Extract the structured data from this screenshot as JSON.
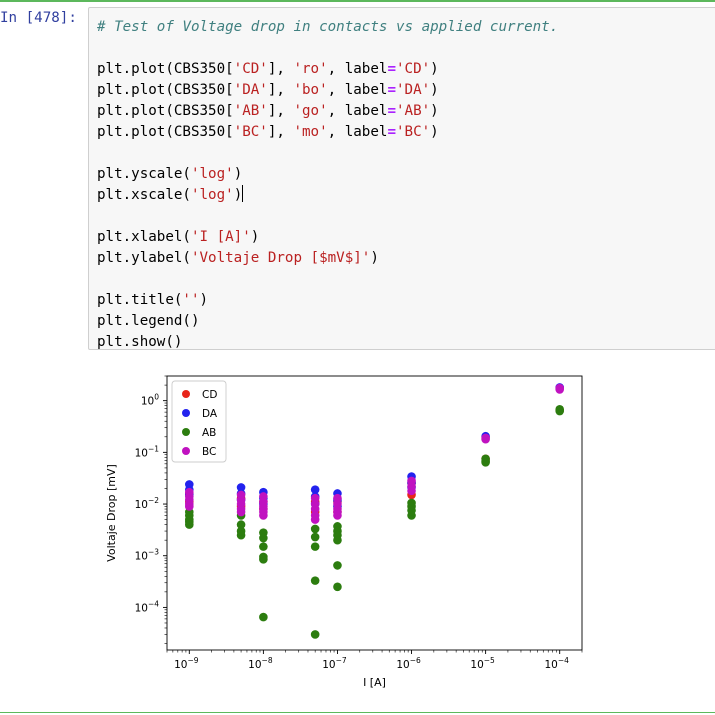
{
  "cell": {
    "prompt": "In [478]:",
    "code_lines": [
      [
        {
          "t": "# Test of Voltage drop in contacts vs applied current.",
          "c": "cmt"
        }
      ],
      [],
      [
        {
          "t": "plt.plot(CBS350[",
          "c": "par"
        },
        {
          "t": "'CD'",
          "c": "str"
        },
        {
          "t": "], ",
          "c": "par"
        },
        {
          "t": "'ro'",
          "c": "str"
        },
        {
          "t": ", label",
          "c": "par"
        },
        {
          "t": "=",
          "c": "kw"
        },
        {
          "t": "'CD'",
          "c": "str"
        },
        {
          "t": ")",
          "c": "par"
        }
      ],
      [
        {
          "t": "plt.plot(CBS350[",
          "c": "par"
        },
        {
          "t": "'DA'",
          "c": "str"
        },
        {
          "t": "], ",
          "c": "par"
        },
        {
          "t": "'bo'",
          "c": "str"
        },
        {
          "t": ", label",
          "c": "par"
        },
        {
          "t": "=",
          "c": "kw"
        },
        {
          "t": "'DA'",
          "c": "str"
        },
        {
          "t": ")",
          "c": "par"
        }
      ],
      [
        {
          "t": "plt.plot(CBS350[",
          "c": "par"
        },
        {
          "t": "'AB'",
          "c": "str"
        },
        {
          "t": "], ",
          "c": "par"
        },
        {
          "t": "'go'",
          "c": "str"
        },
        {
          "t": ", label",
          "c": "par"
        },
        {
          "t": "=",
          "c": "kw"
        },
        {
          "t": "'AB'",
          "c": "str"
        },
        {
          "t": ")",
          "c": "par"
        }
      ],
      [
        {
          "t": "plt.plot(CBS350[",
          "c": "par"
        },
        {
          "t": "'BC'",
          "c": "str"
        },
        {
          "t": "], ",
          "c": "par"
        },
        {
          "t": "'mo'",
          "c": "str"
        },
        {
          "t": ", label",
          "c": "par"
        },
        {
          "t": "=",
          "c": "kw"
        },
        {
          "t": "'BC'",
          "c": "str"
        },
        {
          "t": ")",
          "c": "par"
        }
      ],
      [],
      [
        {
          "t": "plt.yscale(",
          "c": "par"
        },
        {
          "t": "'log'",
          "c": "str"
        },
        {
          "t": ")",
          "c": "par"
        }
      ],
      [
        {
          "t": "plt.xscale(",
          "c": "par"
        },
        {
          "t": "'log'",
          "c": "str"
        },
        {
          "t": ")",
          "c": "par"
        }
      ],
      [],
      [
        {
          "t": "plt.xlabel(",
          "c": "par"
        },
        {
          "t": "'I [A]'",
          "c": "str"
        },
        {
          "t": ")",
          "c": "par"
        }
      ],
      [
        {
          "t": "plt.ylabel(",
          "c": "par"
        },
        {
          "t": "'Voltaje Drop [$mV$]'",
          "c": "str"
        },
        {
          "t": ")",
          "c": "par"
        }
      ],
      [],
      [
        {
          "t": "plt.title(",
          "c": "par"
        },
        {
          "t": "''",
          "c": "str"
        },
        {
          "t": ")",
          "c": "par"
        }
      ],
      [
        {
          "t": "plt.legend()",
          "c": "par"
        }
      ],
      [
        {
          "t": "plt.show()",
          "c": "par"
        }
      ]
    ],
    "cursor_line": 8
  },
  "chart_data": {
    "type": "scatter",
    "xscale": "log",
    "yscale": "log",
    "xlabel": "I [A]",
    "ylabel": "Voltaje Drop [mV]",
    "xlim": [
      5e-10,
      0.0002
    ],
    "ylim": [
      1.5e-05,
      3.0
    ],
    "xticks": [
      {
        "v": 1e-09,
        "base": "10",
        "exp": "−9"
      },
      {
        "v": 1e-08,
        "base": "10",
        "exp": "−8"
      },
      {
        "v": 1e-07,
        "base": "10",
        "exp": "−7"
      },
      {
        "v": 1e-06,
        "base": "10",
        "exp": "−6"
      },
      {
        "v": 1e-05,
        "base": "10",
        "exp": "−5"
      },
      {
        "v": 0.0001,
        "base": "10",
        "exp": "−4"
      }
    ],
    "yticks": [
      {
        "v": 1,
        "base": "10",
        "exp": "0"
      },
      {
        "v": 0.1,
        "base": "10",
        "exp": "−1"
      },
      {
        "v": 0.01,
        "base": "10",
        "exp": "−2"
      },
      {
        "v": 0.001,
        "base": "10",
        "exp": "−3"
      },
      {
        "v": 0.0001,
        "base": "10",
        "exp": "−4"
      }
    ],
    "legend_position": "upper-left",
    "series": [
      {
        "name": "CD",
        "color": "#e8251a",
        "points": [
          [
            1e-09,
            0.016
          ],
          [
            1e-09,
            0.011
          ],
          [
            5e-09,
            0.013
          ],
          [
            5e-09,
            0.009
          ],
          [
            1e-08,
            0.011
          ],
          [
            1e-08,
            0.008
          ],
          [
            5e-08,
            0.011
          ],
          [
            5e-08,
            0.007
          ],
          [
            1e-07,
            0.011
          ],
          [
            1e-07,
            0.007
          ],
          [
            1e-06,
            0.025
          ],
          [
            1e-06,
            0.015
          ],
          [
            1e-05,
            0.075
          ],
          [
            0.0001,
            0.65
          ]
        ]
      },
      {
        "name": "DA",
        "color": "#2222ee",
        "points": [
          [
            1e-09,
            0.024
          ],
          [
            1e-09,
            0.019
          ],
          [
            1e-09,
            0.015
          ],
          [
            5e-09,
            0.021
          ],
          [
            5e-09,
            0.016
          ],
          [
            5e-09,
            0.012
          ],
          [
            1e-08,
            0.017
          ],
          [
            1e-08,
            0.013
          ],
          [
            1e-08,
            0.01
          ],
          [
            5e-08,
            0.019
          ],
          [
            5e-08,
            0.014
          ],
          [
            5e-08,
            0.01
          ],
          [
            1e-07,
            0.016
          ],
          [
            1e-07,
            0.012
          ],
          [
            1e-07,
            0.009
          ],
          [
            1e-06,
            0.034
          ],
          [
            1e-06,
            0.026
          ],
          [
            1e-06,
            0.021
          ],
          [
            1e-05,
            0.205
          ],
          [
            0.0001,
            1.8
          ]
        ]
      },
      {
        "name": "AB",
        "color": "#2c7d0f",
        "points": [
          [
            1e-09,
            0.007
          ],
          [
            1e-09,
            0.006
          ],
          [
            1e-09,
            0.005
          ],
          [
            1e-09,
            0.0045
          ],
          [
            1e-09,
            0.004
          ],
          [
            5e-09,
            0.006
          ],
          [
            5e-09,
            0.004
          ],
          [
            5e-09,
            0.003
          ],
          [
            5e-09,
            0.0025
          ],
          [
            1e-08,
            0.0028
          ],
          [
            1e-08,
            0.0022
          ],
          [
            1e-08,
            0.0015
          ],
          [
            1e-08,
            0.00095
          ],
          [
            1e-08,
            0.00085
          ],
          [
            1e-08,
            6.5e-05
          ],
          [
            5e-08,
            0.0033
          ],
          [
            5e-08,
            0.0023
          ],
          [
            5e-08,
            0.0015
          ],
          [
            5e-08,
            0.00033
          ],
          [
            5e-08,
            3e-05
          ],
          [
            1e-07,
            0.0037
          ],
          [
            1e-07,
            0.003
          ],
          [
            1e-07,
            0.0025
          ],
          [
            1e-07,
            0.002
          ],
          [
            1e-07,
            0.00065
          ],
          [
            1e-07,
            0.00025
          ],
          [
            1e-06,
            0.0105
          ],
          [
            1e-06,
            0.009
          ],
          [
            1e-06,
            0.0075
          ],
          [
            1e-06,
            0.006
          ],
          [
            1e-05,
            0.075
          ],
          [
            1e-05,
            0.068
          ],
          [
            1e-05,
            0.064
          ],
          [
            0.0001,
            0.68
          ],
          [
            0.0001,
            0.63
          ]
        ]
      },
      {
        "name": "BC",
        "color": "#c012c0",
        "points": [
          [
            1e-09,
            0.017
          ],
          [
            1e-09,
            0.014
          ],
          [
            1e-09,
            0.012
          ],
          [
            1e-09,
            0.01
          ],
          [
            1e-09,
            0.009
          ],
          [
            5e-09,
            0.015
          ],
          [
            5e-09,
            0.012
          ],
          [
            5e-09,
            0.01
          ],
          [
            5e-09,
            0.008
          ],
          [
            5e-09,
            0.007
          ],
          [
            1e-08,
            0.014
          ],
          [
            1e-08,
            0.011
          ],
          [
            1e-08,
            0.009
          ],
          [
            1e-08,
            0.008
          ],
          [
            1e-08,
            0.007
          ],
          [
            1e-08,
            0.006
          ],
          [
            5e-08,
            0.013
          ],
          [
            5e-08,
            0.01
          ],
          [
            5e-08,
            0.008
          ],
          [
            5e-08,
            0.006
          ],
          [
            5e-08,
            0.005
          ],
          [
            1e-07,
            0.013
          ],
          [
            1e-07,
            0.01
          ],
          [
            1e-07,
            0.008
          ],
          [
            1e-07,
            0.007
          ],
          [
            1e-07,
            0.006
          ],
          [
            1e-06,
            0.028
          ],
          [
            1e-06,
            0.022
          ],
          [
            1e-06,
            0.018
          ],
          [
            1e-05,
            0.18
          ],
          [
            1e-05,
            0.19
          ],
          [
            0.0001,
            1.65
          ],
          [
            0.0001,
            1.75
          ]
        ]
      }
    ]
  }
}
